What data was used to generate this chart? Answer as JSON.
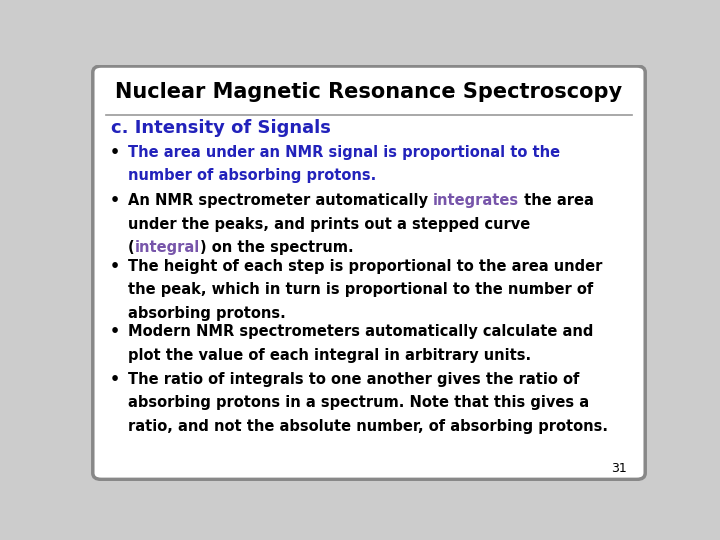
{
  "title": "Nuclear Magnetic Resonance Spectroscopy",
  "subtitle": "c. Intensity of Signals",
  "subtitle_color": "#2222BB",
  "title_color": "#000000",
  "background_color": "#CCCCCC",
  "inner_bg_color": "#FFFFFF",
  "border_color": "#888888",
  "page_number": "31",
  "black": "#000000",
  "blue": "#2222BB",
  "purple": "#7755AA",
  "font_size_title": 15,
  "font_size_subtitle": 13,
  "font_size_body": 10.5,
  "bullet1_lines": [
    "The area under an NMR signal is proportional to the",
    "number of absorbing protons."
  ],
  "bullet2_line1_pre": "An NMR spectrometer automatically ",
  "bullet2_line1_highlight": "integrates",
  "bullet2_line1_post": " the area",
  "bullet2_line2": "under the peaks, and prints out a stepped curve",
  "bullet2_line3_pre": "(",
  "bullet2_line3_highlight": "integral",
  "bullet2_line3_post": ") on the spectrum.",
  "bullet3_lines": [
    "The height of each step is proportional to the area under",
    "the peak, which in turn is proportional to the number of",
    "absorbing protons."
  ],
  "bullet4_lines": [
    "Modern NMR spectrometers automatically calculate and",
    "plot the value of each integral in arbitrary units."
  ],
  "bullet5_lines": [
    "The ratio of integrals to one another gives the ratio of",
    "absorbing protons in a spectrum. Note that this gives a",
    "ratio, and not the absolute number, of absorbing protons."
  ]
}
